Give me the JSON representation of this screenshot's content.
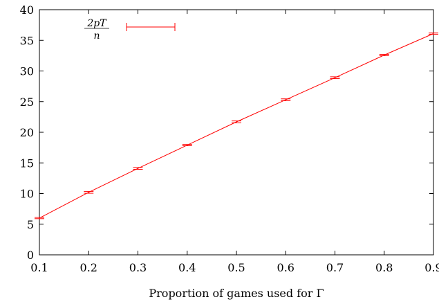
{
  "chart_data": {
    "type": "line",
    "title": "",
    "xlabel": "Proportion of games used for Γ",
    "ylabel": "",
    "xlim": [
      0.1,
      0.9
    ],
    "ylim": [
      0,
      40
    ],
    "x_ticks": [
      "0.1",
      "0.2",
      "0.3",
      "0.4",
      "0.5",
      "0.6",
      "0.7",
      "0.8",
      "0.9"
    ],
    "y_ticks": [
      "0",
      "5",
      "10",
      "15",
      "20",
      "25",
      "30",
      "35",
      "40"
    ],
    "grid": false,
    "legend_position": "top-left",
    "legend": {
      "numerator": "2pT",
      "denominator": "n"
    },
    "series": [
      {
        "color": "#ff0000",
        "x": [
          0.1,
          0.2,
          0.3,
          0.4,
          0.5,
          0.6,
          0.7,
          0.8,
          0.9
        ],
        "y": [
          6.0,
          10.2,
          14.1,
          17.9,
          21.7,
          25.3,
          28.9,
          32.6,
          36.1
        ],
        "err": [
          0.1,
          0.15,
          0.15,
          0.1,
          0.15,
          0.15,
          0.15,
          0.1,
          0.1
        ]
      }
    ]
  }
}
